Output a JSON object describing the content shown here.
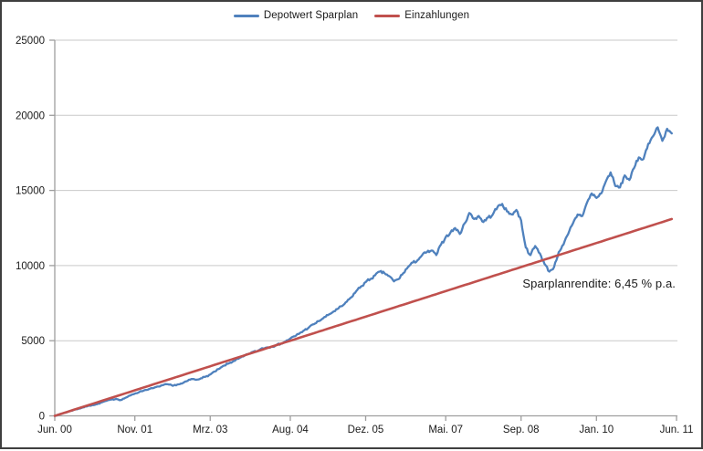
{
  "legend": {
    "items": [
      {
        "label": "Depotwert Sparplan",
        "color": "#4F81BD"
      },
      {
        "label": "Einzahlungen",
        "color": "#C0504D"
      }
    ]
  },
  "colors": {
    "series_blue": "#4F81BD",
    "series_red": "#C0504D",
    "gridline": "#C9C9C9",
    "axis": "#9E9E9E",
    "tick_text": "#1a1a1a",
    "frame_border": "#3f3f3f",
    "background": "#FFFFFF"
  },
  "chart_data": {
    "type": "line",
    "title": "",
    "xlabel": "",
    "ylabel": "",
    "grid": "horizontal",
    "legend_position": "top-center",
    "ylim": [
      0,
      25000
    ],
    "xlim_months": [
      0,
      132
    ],
    "y_ticks": [
      0,
      5000,
      10000,
      15000,
      20000,
      25000
    ],
    "x_tick_months": [
      0,
      17,
      33,
      50,
      66,
      83,
      99,
      115,
      132
    ],
    "x_tick_labels": [
      "Jun. 00",
      "Nov. 01",
      "Mrz. 03",
      "Aug. 04",
      "Dez. 05",
      "Mai. 07",
      "Sep. 08",
      "Jan. 10",
      "Jun. 11"
    ],
    "annotation": {
      "text": "Sparplanrendite: 6,45 % p.a."
    },
    "series": [
      {
        "name": "Depotwert Sparplan",
        "color": "#4F81BD",
        "start_month": "Jun. 2000",
        "interval": "monthly",
        "values": [
          0,
          100,
          195,
          300,
          390,
          470,
          560,
          650,
          720,
          780,
          900,
          1000,
          1080,
          1130,
          1050,
          1200,
          1350,
          1480,
          1600,
          1700,
          1780,
          1850,
          1950,
          2050,
          2100,
          2000,
          2080,
          2150,
          2300,
          2450,
          2400,
          2500,
          2600,
          2750,
          2950,
          3150,
          3350,
          3500,
          3650,
          3800,
          3950,
          4100,
          4250,
          4300,
          4500,
          4550,
          4600,
          4700,
          4800,
          4950,
          5150,
          5300,
          5500,
          5700,
          5900,
          6100,
          6300,
          6500,
          6700,
          6900,
          7100,
          7300,
          7600,
          7900,
          8300,
          8600,
          8900,
          9100,
          9350,
          9600,
          9500,
          9300,
          8950,
          9100,
          9500,
          9900,
          10200,
          10350,
          10700,
          10900,
          11000,
          10700,
          11400,
          11900,
          12200,
          12500,
          12100,
          12800,
          13500,
          13100,
          13300,
          12900,
          13200,
          13400,
          13900,
          14100,
          13600,
          13400,
          13700,
          13000,
          11200,
          10700,
          11300,
          10800,
          10100,
          9600,
          9900,
          10900,
          11400,
          12100,
          12800,
          13400,
          13300,
          14200,
          14800,
          14500,
          14800,
          15600,
          16200,
          15300,
          15200,
          16000,
          15700,
          16500,
          17200,
          17100,
          18100,
          18600,
          19200,
          18300,
          19100,
          18800
        ]
      },
      {
        "name": "Einzahlungen",
        "color": "#C0504D",
        "start_month": "Jun. 2000",
        "interval": "monthly",
        "monthly_deposit": 100,
        "values": [
          0,
          100,
          200,
          300,
          400,
          500,
          600,
          700,
          800,
          900,
          1000,
          1100,
          1200,
          1300,
          1400,
          1500,
          1600,
          1700,
          1800,
          1900,
          2000,
          2100,
          2200,
          2300,
          2400,
          2500,
          2600,
          2700,
          2800,
          2900,
          3000,
          3100,
          3200,
          3300,
          3400,
          3500,
          3600,
          3700,
          3800,
          3900,
          4000,
          4100,
          4200,
          4300,
          4400,
          4500,
          4600,
          4700,
          4800,
          4900,
          5000,
          5100,
          5200,
          5300,
          5400,
          5500,
          5600,
          5700,
          5800,
          5900,
          6000,
          6100,
          6200,
          6300,
          6400,
          6500,
          6600,
          6700,
          6800,
          6900,
          7000,
          7100,
          7200,
          7300,
          7400,
          7500,
          7600,
          7700,
          7800,
          7900,
          8000,
          8100,
          8200,
          8300,
          8400,
          8500,
          8600,
          8700,
          8800,
          8900,
          9000,
          9100,
          9200,
          9300,
          9400,
          9500,
          9600,
          9700,
          9800,
          9900,
          10000,
          10100,
          10200,
          10300,
          10400,
          10500,
          10600,
          10700,
          10800,
          10900,
          11000,
          11100,
          11200,
          11300,
          11400,
          11500,
          11600,
          11700,
          11800,
          11900,
          12000,
          12100,
          12200,
          12300,
          12400,
          12500,
          12600,
          12700,
          12800,
          12900,
          13000,
          13100
        ]
      }
    ]
  }
}
